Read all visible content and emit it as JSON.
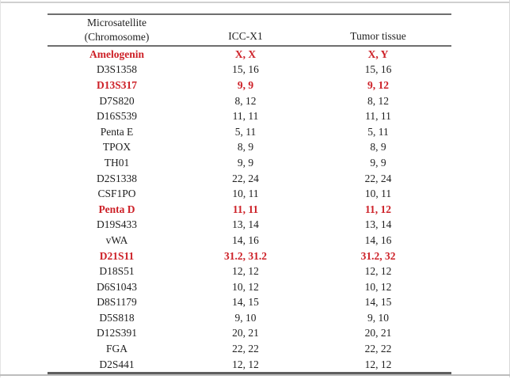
{
  "page": {
    "background_color": "#ffffff",
    "frame_color": "#d0d0d0",
    "rule_color": "#6e6e6e"
  },
  "table": {
    "header": {
      "col1_line1": "Microsatellite",
      "col1_line2": "(Chromosome)",
      "col2": "ICC-X1",
      "col3": "Tumor tissue"
    },
    "highlight_color": "#cd2027",
    "text_color": "#1f1f1f",
    "rows": [
      {
        "marker": "Amelogenin",
        "icc_x1": "X, X",
        "tumor_tissue": "X, Y",
        "highlighted": true
      },
      {
        "marker": "D3S1358",
        "icc_x1": "15, 16",
        "tumor_tissue": "15, 16",
        "highlighted": false
      },
      {
        "marker": "D13S317",
        "icc_x1": "9, 9",
        "tumor_tissue": "9, 12",
        "highlighted": true
      },
      {
        "marker": "D7S820",
        "icc_x1": "8, 12",
        "tumor_tissue": "8, 12",
        "highlighted": false
      },
      {
        "marker": "D16S539",
        "icc_x1": "11, 11",
        "tumor_tissue": "11, 11",
        "highlighted": false
      },
      {
        "marker": "Penta E",
        "icc_x1": "5, 11",
        "tumor_tissue": "5, 11",
        "highlighted": false
      },
      {
        "marker": "TPOX",
        "icc_x1": "8, 9",
        "tumor_tissue": "8, 9",
        "highlighted": false
      },
      {
        "marker": "TH01",
        "icc_x1": "9, 9",
        "tumor_tissue": "9, 9",
        "highlighted": false
      },
      {
        "marker": "D2S1338",
        "icc_x1": "22, 24",
        "tumor_tissue": "22, 24",
        "highlighted": false
      },
      {
        "marker": "CSF1PO",
        "icc_x1": "10, 11",
        "tumor_tissue": "10, 11",
        "highlighted": false
      },
      {
        "marker": "Penta D",
        "icc_x1": "11, 11",
        "tumor_tissue": "11, 12",
        "highlighted": true
      },
      {
        "marker": "D19S433",
        "icc_x1": "13, 14",
        "tumor_tissue": "13, 14",
        "highlighted": false
      },
      {
        "marker": "vWA",
        "icc_x1": "14, 16",
        "tumor_tissue": "14, 16",
        "highlighted": false
      },
      {
        "marker": "D21S11",
        "icc_x1": "31.2, 31.2",
        "tumor_tissue": "31.2, 32",
        "highlighted": true
      },
      {
        "marker": "D18S51",
        "icc_x1": "12, 12",
        "tumor_tissue": "12, 12",
        "highlighted": false
      },
      {
        "marker": "D6S1043",
        "icc_x1": "10, 12",
        "tumor_tissue": "10, 12",
        "highlighted": false
      },
      {
        "marker": "D8S1179",
        "icc_x1": "14, 15",
        "tumor_tissue": "14, 15",
        "highlighted": false
      },
      {
        "marker": "D5S818",
        "icc_x1": "9, 10",
        "tumor_tissue": "9, 10",
        "highlighted": false
      },
      {
        "marker": "D12S391",
        "icc_x1": "20, 21",
        "tumor_tissue": "20, 21",
        "highlighted": false
      },
      {
        "marker": "FGA",
        "icc_x1": "22, 22",
        "tumor_tissue": "22, 22",
        "highlighted": false
      },
      {
        "marker": "D2S441",
        "icc_x1": "12, 12",
        "tumor_tissue": "12, 12",
        "highlighted": false
      }
    ]
  }
}
